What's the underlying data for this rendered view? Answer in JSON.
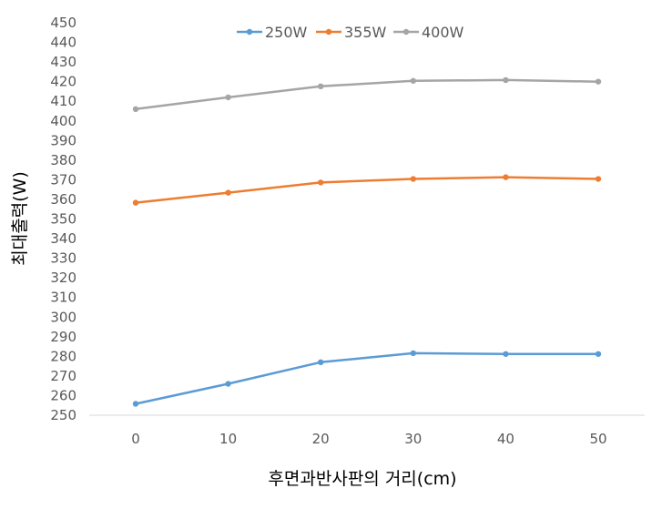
{
  "chart_data": {
    "type": "line",
    "x": [
      0,
      10,
      20,
      30,
      40,
      50
    ],
    "series": [
      {
        "name": "250W",
        "color": "#5b9bd5",
        "values": [
          255.8,
          266.0,
          277.0,
          281.6,
          281.2,
          281.2
        ]
      },
      {
        "name": "355W",
        "color": "#ed7d31",
        "values": [
          358.3,
          363.4,
          368.6,
          370.4,
          371.3,
          370.4
        ]
      },
      {
        "name": "400W",
        "color": "#a5a5a5",
        "values": [
          406.0,
          412.0,
          417.6,
          420.4,
          420.8,
          420.0
        ]
      }
    ],
    "xlabel": "후면과반사판의 거리(cm)",
    "ylabel": "최대출력(W)",
    "ylim": [
      250,
      450
    ],
    "ytick_step": 10,
    "legend_position": "top-center",
    "grid": false
  }
}
